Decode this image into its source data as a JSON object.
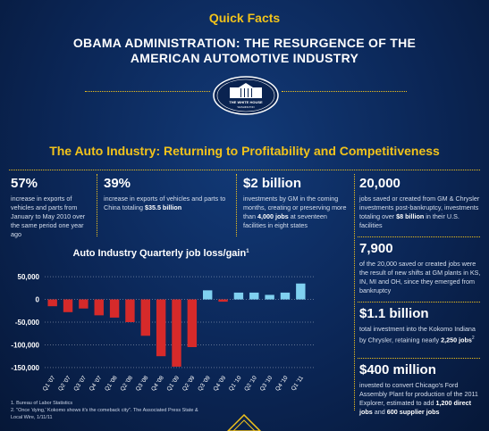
{
  "header": {
    "kicker": "Quick Facts",
    "title": "OBAMA ADMINISTRATION: THE RESURGENCE OF THE AMERICAN AUTOMOTIVE INDUSTRY",
    "seal_title": "THE WHITE HOUSE",
    "seal_city": "WASHINGTON"
  },
  "section_title": "The Auto Industry: Returning to Profitability and Competitiveness",
  "facts": [
    {
      "value": "57%",
      "text": [
        "increase in exports of vehicles and parts from January to May 2010 over the same period one year ago"
      ]
    },
    {
      "value": "39%",
      "text": [
        "increase in exports of vehicles and parts to China totaling ",
        "$35.5 billion"
      ]
    },
    {
      "value": "$2 billion",
      "text": [
        "investments by GM in the coming months, creating or preserving more than ",
        "4,000 jobs",
        " at seventeen facilities in eight states"
      ]
    },
    {
      "value": "20,000",
      "text": [
        "jobs saved or created from GM & Chrysler investments post-bankruptcy, investments totaling over ",
        "$8 billion",
        " in their U.S. facilities"
      ]
    },
    {
      "value": "7,900",
      "text": [
        "of the 20,000 saved or created jobs were the result of new shifts at GM plants in KS, IN, MI and OH, since they emerged from bankruptcy"
      ]
    },
    {
      "value": "$1.1 billion",
      "text": [
        "total investment into the Kokomo Indiana by Chrysler, retaining nearly ",
        "2,250 jobs"
      ],
      "note": "2"
    },
    {
      "value": "$400 million",
      "text": [
        "invested to convert Chicago's Ford Assembly Plant for production of the 2011 Explorer, estimated to add ",
        "1,200 direct jobs",
        " and ",
        "600 supplier jobs"
      ]
    }
  ],
  "chart_data": {
    "type": "bar",
    "title": "Auto Industry Quarterly job loss/gain",
    "title_note": "1",
    "categories": [
      "Q1 '07",
      "Q2 '07",
      "Q3 '07",
      "Q4 '07",
      "Q1 '08",
      "Q2 '08",
      "Q3 '08",
      "Q4 '08",
      "Q1 '09",
      "Q2 '09",
      "Q3 '09",
      "Q4 '09",
      "Q1 '10",
      "Q2 '10",
      "Q3 '10",
      "Q4 '10",
      "Q1 '11"
    ],
    "values": [
      -15000,
      -28000,
      -20000,
      -35000,
      -40000,
      -50000,
      -80000,
      -125000,
      -148000,
      -105000,
      20000,
      -5000,
      15000,
      15000,
      10000,
      15000,
      35000
    ],
    "colors": {
      "loss": "#d62a2a",
      "gain": "#7fd0f0"
    },
    "ylim": [
      -160000,
      60000
    ],
    "yticks": [
      {
        "value": 50000,
        "label": "50,000"
      },
      0,
      {
        "value": -50000,
        "label": "-50,000"
      },
      {
        "value": -100000,
        "label": "-100,000"
      },
      {
        "value": -150000,
        "label": "-150,000"
      }
    ],
    "grid": true
  },
  "footnotes": [
    "1. Bureau of Labor Statistics",
    "2. \"Once 'dying,' Kokomo shows it's the comeback city\". The Associated Press State & Local Wire, 1/11/11"
  ]
}
